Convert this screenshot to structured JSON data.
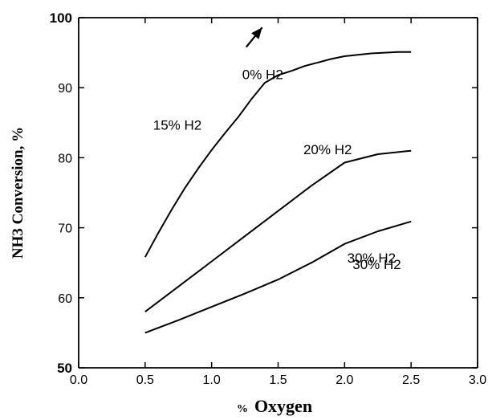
{
  "chart_data": {
    "type": "line",
    "title": "",
    "xlabel_prefix": "%",
    "xlabel": "Oxygen",
    "ylabel": "NH3 Conversion, %",
    "xlim": [
      0.0,
      3.0
    ],
    "ylim": [
      50,
      100
    ],
    "x_ticks": [
      "0.0",
      "0.5",
      "1.0",
      "1.5",
      "2.0",
      "2.5",
      "3.0"
    ],
    "y_ticks": [
      "50",
      "60",
      "70",
      "80",
      "90",
      "100"
    ],
    "grid": false,
    "series": [
      {
        "name": "15% H2",
        "x": [
          0.5,
          0.6,
          0.7,
          0.8,
          0.9,
          1.0,
          1.1,
          1.2,
          1.3,
          1.4,
          1.5,
          1.6,
          1.7,
          1.8,
          1.9,
          2.0,
          2.1,
          2.2,
          2.3,
          2.4,
          2.5
        ],
        "y": [
          65.8,
          69.3,
          72.6,
          75.7,
          78.5,
          81.1,
          83.5,
          85.8,
          88.4,
          90.7,
          91.8,
          92.4,
          93.1,
          93.6,
          94.1,
          94.5,
          94.7,
          94.9,
          95.0,
          95.1,
          95.1
        ]
      },
      {
        "name": "20% H2",
        "x": [
          0.5,
          0.75,
          1.0,
          1.25,
          1.5,
          1.75,
          2.0,
          2.25,
          2.5
        ],
        "y": [
          58.0,
          61.6,
          65.2,
          68.8,
          72.4,
          76.0,
          79.3,
          80.5,
          81.0
        ]
      },
      {
        "name": "30% H2",
        "x": [
          0.5,
          0.75,
          1.0,
          1.25,
          1.5,
          1.75,
          2.0,
          2.25,
          2.5
        ],
        "y": [
          55.0,
          56.8,
          58.7,
          60.6,
          62.6,
          65.0,
          67.7,
          69.5,
          70.9
        ]
      }
    ],
    "annotations": [
      {
        "text": "0% H2",
        "x": 1.23,
        "y": 91.2
      },
      {
        "text": "15% H2",
        "x": 0.56,
        "y": 84.0
      },
      {
        "text": "20% H2",
        "x": 1.69,
        "y": 80.5
      },
      {
        "text": "30% H2",
        "x": 2.02,
        "y": 65.0
      },
      {
        "text": "30% H2",
        "x": 2.06,
        "y": 64.1
      }
    ],
    "arrow": {
      "from": [
        1.26,
        95.8
      ],
      "to": [
        1.38,
        98.6
      ]
    }
  }
}
